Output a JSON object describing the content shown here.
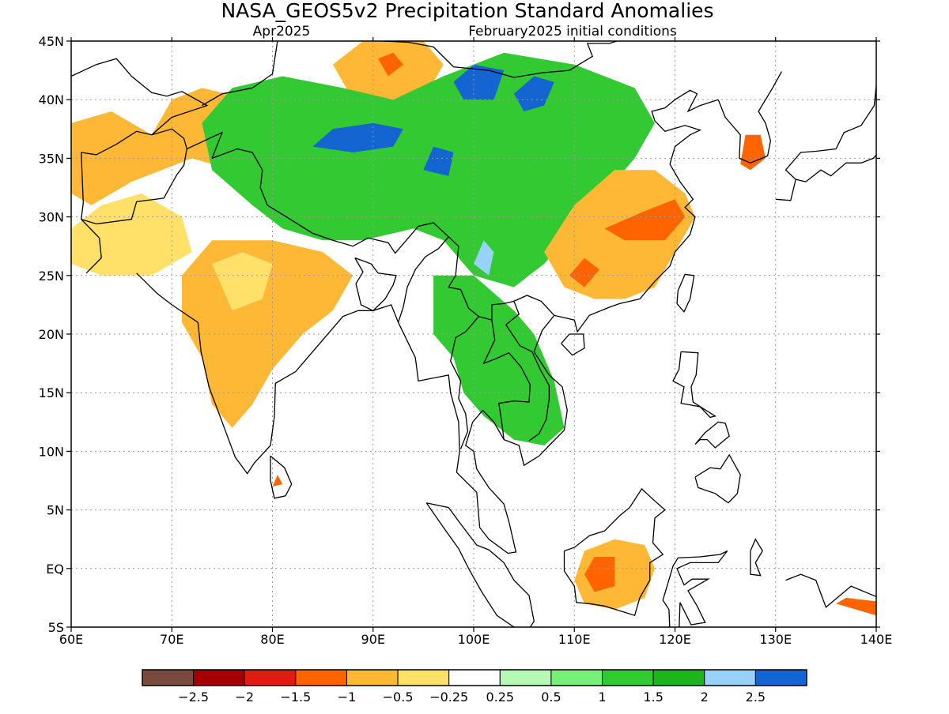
{
  "title": "NASA_GEOS5v2 Precipitation Standard Anomalies",
  "subtitle_left": "Apr2025",
  "subtitle_right": "February2025 initial conditions",
  "map": {
    "lon_range": [
      60,
      140
    ],
    "lat_range": [
      -5,
      45
    ],
    "lon_ticks": [
      {
        "value": 60,
        "label": "60E"
      },
      {
        "value": 70,
        "label": "70E"
      },
      {
        "value": 80,
        "label": "80E"
      },
      {
        "value": 90,
        "label": "90E"
      },
      {
        "value": 100,
        "label": "100E"
      },
      {
        "value": 110,
        "label": "110E"
      },
      {
        "value": 120,
        "label": "120E"
      },
      {
        "value": 130,
        "label": "130E"
      },
      {
        "value": 140,
        "label": "140E"
      }
    ],
    "lat_ticks": [
      {
        "value": -5,
        "label": "5S"
      },
      {
        "value": 0,
        "label": "EQ"
      },
      {
        "value": 5,
        "label": "5N"
      },
      {
        "value": 10,
        "label": "10N"
      },
      {
        "value": 15,
        "label": "15N"
      },
      {
        "value": 20,
        "label": "20N"
      },
      {
        "value": 25,
        "label": "25N"
      },
      {
        "value": 30,
        "label": "30N"
      },
      {
        "value": 35,
        "label": "35N"
      },
      {
        "value": 40,
        "label": "40N"
      },
      {
        "value": 45,
        "label": "45N"
      }
    ],
    "grid": "dotted"
  },
  "anomaly_regions": [
    {
      "name": "west-asia-north",
      "color": "#ffb835",
      "points": [
        [
          60,
          38
        ],
        [
          64,
          39
        ],
        [
          68,
          37
        ],
        [
          70,
          40
        ],
        [
          73,
          41
        ],
        [
          78,
          40
        ],
        [
          80,
          37
        ],
        [
          76,
          34
        ],
        [
          72,
          35
        ],
        [
          66,
          33
        ],
        [
          62,
          31
        ],
        [
          60,
          32
        ]
      ]
    },
    {
      "name": "iran-pakistan",
      "color": "#ffe16a",
      "points": [
        [
          60,
          29
        ],
        [
          63,
          31
        ],
        [
          67,
          32
        ],
        [
          71,
          30
        ],
        [
          72,
          27
        ],
        [
          68,
          25
        ],
        [
          63,
          25
        ],
        [
          60,
          26
        ]
      ]
    },
    {
      "name": "mongolia-west",
      "color": "#ffb835",
      "points": [
        [
          86,
          43
        ],
        [
          89,
          45
        ],
        [
          95,
          45
        ],
        [
          97,
          43
        ],
        [
          95,
          40
        ],
        [
          91,
          39
        ],
        [
          88,
          40
        ]
      ]
    },
    {
      "name": "mongolia-core",
      "color": "#ff6400",
      "points": [
        [
          90.5,
          43.5
        ],
        [
          92,
          44
        ],
        [
          93,
          43
        ],
        [
          91.5,
          42
        ]
      ]
    },
    {
      "name": "tibet-green",
      "color": "#33c933",
      "points": [
        [
          73,
          38
        ],
        [
          76,
          41
        ],
        [
          81,
          42
        ],
        [
          87,
          41
        ],
        [
          92,
          40
        ],
        [
          97,
          42
        ],
        [
          103,
          44
        ],
        [
          110,
          43
        ],
        [
          116,
          41
        ],
        [
          118,
          38
        ],
        [
          116,
          35
        ],
        [
          113,
          32
        ],
        [
          110,
          29
        ],
        [
          107,
          26
        ],
        [
          104,
          24
        ],
        [
          100,
          25
        ],
        [
          97,
          28
        ],
        [
          94,
          29
        ],
        [
          89,
          28
        ],
        [
          85,
          28
        ],
        [
          81,
          29
        ],
        [
          78,
          31
        ],
        [
          74,
          34
        ]
      ]
    },
    {
      "name": "tibet-blue-1",
      "color": "#1464d2",
      "points": [
        [
          84,
          36
        ],
        [
          86,
          37.5
        ],
        [
          90,
          38
        ],
        [
          93,
          37.5
        ],
        [
          92,
          36
        ],
        [
          88,
          35.5
        ]
      ]
    },
    {
      "name": "tibet-blue-2",
      "color": "#1464d2",
      "points": [
        [
          98,
          41.5
        ],
        [
          100,
          43
        ],
        [
          103,
          42.5
        ],
        [
          102,
          40
        ],
        [
          99,
          40
        ]
      ]
    },
    {
      "name": "tibet-blue-3",
      "color": "#1464d2",
      "points": [
        [
          104,
          40.5
        ],
        [
          106,
          42
        ],
        [
          108,
          41.5
        ],
        [
          107,
          39.5
        ],
        [
          105,
          39
        ]
      ]
    },
    {
      "name": "tibet-blue-4",
      "color": "#1464d2",
      "points": [
        [
          95,
          34
        ],
        [
          96,
          36
        ],
        [
          98,
          35.5
        ],
        [
          97.5,
          33.5
        ]
      ]
    },
    {
      "name": "tibet-light-blue",
      "color": "#96d2fa",
      "points": [
        [
          100,
          26
        ],
        [
          101,
          28
        ],
        [
          102,
          27
        ],
        [
          101.5,
          25
        ]
      ]
    },
    {
      "name": "southeast-asia-green",
      "color": "#33c933",
      "points": [
        [
          96,
          25
        ],
        [
          100,
          25
        ],
        [
          104,
          22
        ],
        [
          106,
          20
        ],
        [
          108,
          16
        ],
        [
          109,
          12
        ],
        [
          107,
          10.5
        ],
        [
          104,
          11
        ],
        [
          101,
          13
        ],
        [
          99,
          15
        ],
        [
          98,
          18
        ],
        [
          96,
          20
        ]
      ]
    },
    {
      "name": "india-central",
      "color": "#ffb835",
      "points": [
        [
          71,
          25
        ],
        [
          74,
          28
        ],
        [
          80,
          28
        ],
        [
          85,
          27
        ],
        [
          88,
          25
        ],
        [
          86,
          22
        ],
        [
          83,
          20
        ],
        [
          80,
          17
        ],
        [
          78,
          14
        ],
        [
          76,
          12
        ],
        [
          74,
          14
        ],
        [
          73,
          18
        ],
        [
          71,
          21
        ]
      ]
    },
    {
      "name": "india-light",
      "color": "#ffe16a",
      "points": [
        [
          74,
          26
        ],
        [
          77,
          27
        ],
        [
          80,
          26
        ],
        [
          79,
          23
        ],
        [
          76,
          22
        ]
      ]
    },
    {
      "name": "south-china",
      "color": "#ffb835",
      "points": [
        [
          107,
          27
        ],
        [
          110,
          31
        ],
        [
          114,
          34
        ],
        [
          118,
          34
        ],
        [
          121,
          32
        ],
        [
          122,
          30
        ],
        [
          120,
          27
        ],
        [
          118,
          24
        ],
        [
          115,
          23
        ],
        [
          112,
          23
        ],
        [
          109,
          24
        ]
      ]
    },
    {
      "name": "south-china-core",
      "color": "#ff6400",
      "points": [
        [
          113,
          29
        ],
        [
          117,
          30.5
        ],
        [
          120,
          31.5
        ],
        [
          121,
          30
        ],
        [
          119,
          28
        ],
        [
          115,
          28
        ]
      ]
    },
    {
      "name": "south-china-spot",
      "color": "#ff6400",
      "points": [
        [
          109.5,
          25
        ],
        [
          111,
          26.5
        ],
        [
          112.5,
          25.5
        ],
        [
          111,
          24
        ]
      ]
    },
    {
      "name": "korea",
      "color": "#ff6400",
      "points": [
        [
          126.5,
          34.5
        ],
        [
          127,
          37
        ],
        [
          128.5,
          37
        ],
        [
          129,
          35
        ],
        [
          127.5,
          34
        ]
      ]
    },
    {
      "name": "borneo",
      "color": "#ffb835",
      "points": [
        [
          110,
          -1
        ],
        [
          111,
          1.5
        ],
        [
          114,
          2.5
        ],
        [
          117,
          2
        ],
        [
          118,
          0
        ],
        [
          117,
          -2.5
        ],
        [
          114,
          -3.5
        ],
        [
          111,
          -3
        ]
      ]
    },
    {
      "name": "borneo-core",
      "color": "#ff6400",
      "points": [
        [
          111,
          -0.5
        ],
        [
          112,
          1
        ],
        [
          114,
          1
        ],
        [
          114,
          -1.5
        ],
        [
          112,
          -2
        ]
      ]
    },
    {
      "name": "sri-lanka",
      "color": "#ff6400",
      "points": [
        [
          80,
          7
        ],
        [
          80.5,
          8
        ],
        [
          81,
          7.2
        ]
      ]
    },
    {
      "name": "new-guinea",
      "color": "#ff6400",
      "points": [
        [
          136,
          -3
        ],
        [
          137,
          -2.5
        ],
        [
          140,
          -2.8
        ],
        [
          140,
          -4
        ]
      ]
    }
  ],
  "colorbar": {
    "colors": [
      "#7a4a3c",
      "#a50000",
      "#e01b0f",
      "#ff6400",
      "#ffb835",
      "#ffe16a",
      "#ffffff",
      "#b4fab4",
      "#78f078",
      "#33c933",
      "#1eb41e",
      "#96d2fa",
      "#1464d2"
    ],
    "labels": [
      "−2.5",
      "−2",
      "−1.5",
      "−1",
      "−0.5",
      "−0.25",
      "0.25",
      "0.5",
      "1",
      "1.5",
      "2",
      "2.5"
    ]
  }
}
